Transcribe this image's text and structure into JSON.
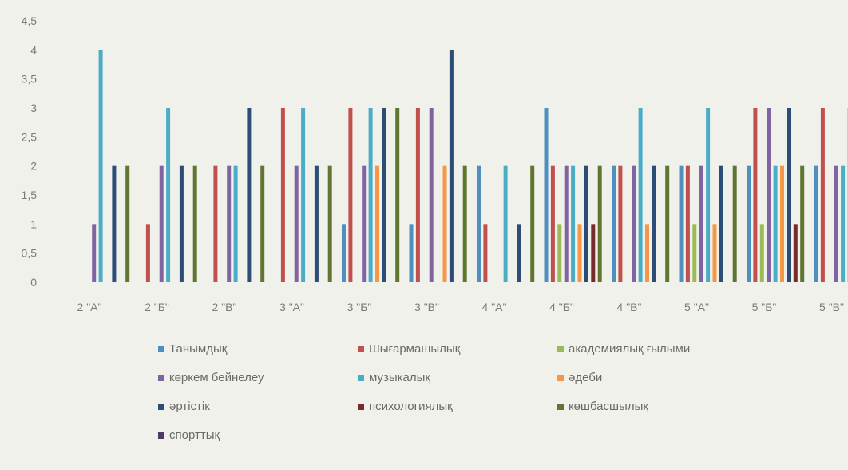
{
  "chart_data": {
    "type": "bar",
    "title": "",
    "xlabel": "",
    "ylabel": "",
    "ylim": [
      0,
      4.5
    ],
    "y_ticks": [
      "0",
      "0,5",
      "1",
      "1,5",
      "2",
      "2,5",
      "3",
      "3,5",
      "4",
      "4,5"
    ],
    "grid": false,
    "legend_position": "bottom",
    "categories": [
      "2 \"А\"",
      "2 \"Б\"",
      "2 \"В\"",
      "3 \"А\"",
      "3 \"Б\"",
      "3 \"В\"",
      "4 \"А\"",
      "4 \"Б\"",
      "4 \"В\"",
      "5 \"А\"",
      "5 \"Б\"",
      "5 \"В\""
    ],
    "series": [
      {
        "name": "Танымдық",
        "color": "#4f8fc0",
        "values": [
          0,
          0,
          0,
          0,
          1,
          1,
          2,
          3,
          2,
          2,
          2,
          2
        ]
      },
      {
        "name": "Шығармашылық",
        "color": "#c0504d",
        "values": [
          0,
          1,
          2,
          3,
          3,
          3,
          1,
          2,
          2,
          2,
          3,
          3
        ]
      },
      {
        "name": "академиялық ғылыми",
        "color": "#9bbb59",
        "values": [
          0,
          0,
          0,
          0,
          0,
          0,
          0,
          1,
          0,
          1,
          1,
          0
        ]
      },
      {
        "name": "көркем бейнелеу",
        "color": "#8064a2",
        "values": [
          1,
          2,
          2,
          2,
          2,
          3,
          0,
          2,
          2,
          2,
          3,
          2
        ]
      },
      {
        "name": "музыкалық",
        "color": "#4bacc6",
        "values": [
          4,
          3,
          2,
          3,
          3,
          0,
          2,
          2,
          3,
          3,
          2,
          2
        ]
      },
      {
        "name": "әдеби",
        "color": "#f79646",
        "values": [
          0,
          0,
          0,
          0,
          2,
          2,
          0,
          1,
          1,
          1,
          2,
          3
        ]
      },
      {
        "name": "әртістік",
        "color": "#2c4d75",
        "values": [
          2,
          2,
          3,
          2,
          3,
          4,
          1,
          2,
          2,
          2,
          3,
          3
        ]
      },
      {
        "name": "психологиялық",
        "color": "#772c2a",
        "values": [
          0,
          0,
          0,
          0,
          0,
          0,
          0,
          1,
          0,
          0,
          1,
          0
        ]
      },
      {
        "name": "көшбасшылық",
        "color": "#5f7530",
        "values": [
          2,
          2,
          2,
          2,
          3,
          2,
          2,
          2,
          2,
          2,
          2,
          2
        ]
      },
      {
        "name": "спорттық",
        "color": "#4d3b62",
        "values": [
          0,
          0,
          0,
          0,
          0,
          0,
          0,
          0,
          0,
          0,
          0,
          0
        ]
      }
    ]
  }
}
